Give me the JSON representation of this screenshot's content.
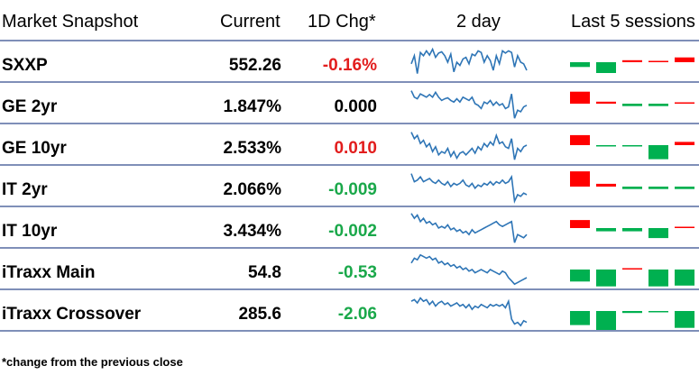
{
  "header": {
    "title": "Market Snapshot",
    "current": "Current",
    "change": "1D Chg*",
    "two_day": "2 day",
    "last5": "Last 5 sessions"
  },
  "colors": {
    "negative": "#e21d1d",
    "positive": "#1aa84a",
    "neutral": "#000000",
    "line": "#2e75b6",
    "bar_green": "#00b050",
    "bar_red": "#ff0000"
  },
  "rows": [
    {
      "name": "SXXP",
      "current": "552.26",
      "change": "-0.16%",
      "dir": "neg",
      "spark": [
        0.55,
        0.3,
        0.85,
        0.2,
        0.3,
        0.15,
        0.28,
        0.1,
        0.35,
        0.22,
        0.18,
        0.3,
        0.5,
        0.25,
        0.8,
        0.5,
        0.6,
        0.4,
        0.35,
        0.55,
        0.25,
        0.3,
        0.15,
        0.2,
        0.5,
        0.3,
        0.45,
        0.75,
        0.3,
        0.55,
        0.15,
        0.22,
        0.15,
        0.2,
        0.65,
        0.3,
        0.5,
        0.55,
        0.75
      ],
      "sessions": [
        -0.12,
        -0.27,
        0.05,
        0.01,
        0.12
      ]
    },
    {
      "name": "GE 2yr",
      "current": "1.847%",
      "change": "0.000",
      "dir": "flat",
      "spark": [
        0.1,
        0.3,
        0.35,
        0.2,
        0.25,
        0.3,
        0.22,
        0.3,
        0.15,
        0.3,
        0.4,
        0.35,
        0.32,
        0.4,
        0.45,
        0.35,
        0.45,
        0.3,
        0.35,
        0.4,
        0.3,
        0.5,
        0.55,
        0.65,
        0.45,
        0.5,
        0.4,
        0.55,
        0.45,
        0.55,
        0.5,
        0.65,
        0.6,
        0.2,
        0.95,
        0.7,
        0.75,
        0.6,
        0.55
      ],
      "sessions": [
        0.3,
        0.05,
        -0.06,
        -0.06,
        0.0
      ]
    },
    {
      "name": "GE 10yr",
      "current": "2.533%",
      "change": "0.010",
      "dir": "neg",
      "spark": [
        0.1,
        0.3,
        0.2,
        0.45,
        0.35,
        0.55,
        0.45,
        0.7,
        0.55,
        0.8,
        0.7,
        0.75,
        0.6,
        0.85,
        0.7,
        0.9,
        0.75,
        0.7,
        0.8,
        0.7,
        0.6,
        0.75,
        0.55,
        0.65,
        0.45,
        0.55,
        0.4,
        0.5,
        0.2,
        0.45,
        0.4,
        0.55,
        0.6,
        0.3,
        0.95,
        0.6,
        0.7,
        0.55,
        0.5
      ],
      "sessions": [
        0.25,
        -0.02,
        -0.02,
        -0.35,
        0.08
      ]
    },
    {
      "name": "IT 2yr",
      "current": "2.066%",
      "change": "-0.009",
      "dir": "pos",
      "spark": [
        0.1,
        0.35,
        0.3,
        0.2,
        0.35,
        0.3,
        0.25,
        0.35,
        0.4,
        0.3,
        0.4,
        0.45,
        0.35,
        0.5,
        0.4,
        0.45,
        0.4,
        0.3,
        0.45,
        0.5,
        0.4,
        0.55,
        0.45,
        0.5,
        0.4,
        0.45,
        0.35,
        0.45,
        0.35,
        0.4,
        0.3,
        0.4,
        0.35,
        0.2,
        0.95,
        0.75,
        0.8,
        0.7,
        0.75
      ],
      "sessions": [
        0.38,
        0.07,
        -0.06,
        -0.06,
        -0.06
      ]
    },
    {
      "name": "IT 10yr",
      "current": "3.434%",
      "change": "-0.002",
      "dir": "pos",
      "spark": [
        0.05,
        0.2,
        0.1,
        0.3,
        0.2,
        0.35,
        0.3,
        0.4,
        0.35,
        0.5,
        0.45,
        0.5,
        0.4,
        0.55,
        0.5,
        0.6,
        0.55,
        0.65,
        0.6,
        0.7,
        0.55,
        0.65,
        0.6,
        0.55,
        0.5,
        0.45,
        0.4,
        0.35,
        0.3,
        0.4,
        0.45,
        0.4,
        0.35,
        0.3,
        0.95,
        0.7,
        0.75,
        0.8,
        0.7
      ],
      "sessions": [
        0.2,
        -0.08,
        -0.08,
        -0.25,
        0.01
      ]
    },
    {
      "name": "iTraxx Main",
      "current": "54.8",
      "change": "-0.53",
      "dir": "pos",
      "spark": [
        0.3,
        0.15,
        0.2,
        0.05,
        0.1,
        0.15,
        0.1,
        0.2,
        0.15,
        0.3,
        0.25,
        0.35,
        0.3,
        0.4,
        0.35,
        0.45,
        0.4,
        0.5,
        0.45,
        0.55,
        0.5,
        0.6,
        0.55,
        0.5,
        0.55,
        0.6,
        0.5,
        0.55,
        0.6,
        0.65,
        0.55,
        0.6,
        0.75,
        0.85,
        0.95,
        0.9,
        0.85,
        0.8,
        0.75
      ],
      "sessions": [
        -0.3,
        -0.42,
        0.01,
        -0.42,
        -0.4
      ]
    },
    {
      "name": "iTraxx Crossover",
      "current": "285.6",
      "change": "-2.06",
      "dir": "pos",
      "spark": [
        0.2,
        0.15,
        0.25,
        0.1,
        0.2,
        0.15,
        0.3,
        0.2,
        0.35,
        0.25,
        0.2,
        0.3,
        0.25,
        0.35,
        0.3,
        0.25,
        0.35,
        0.3,
        0.4,
        0.3,
        0.45,
        0.35,
        0.4,
        0.3,
        0.35,
        0.4,
        0.3,
        0.35,
        0.3,
        0.35,
        0.3,
        0.4,
        0.2,
        0.75,
        0.9,
        0.85,
        0.95,
        0.8,
        0.85
      ],
      "sessions": [
        -0.35,
        -0.85,
        -0.05,
        -0.02,
        -0.42
      ]
    }
  ],
  "footer": "*change from the previous close"
}
